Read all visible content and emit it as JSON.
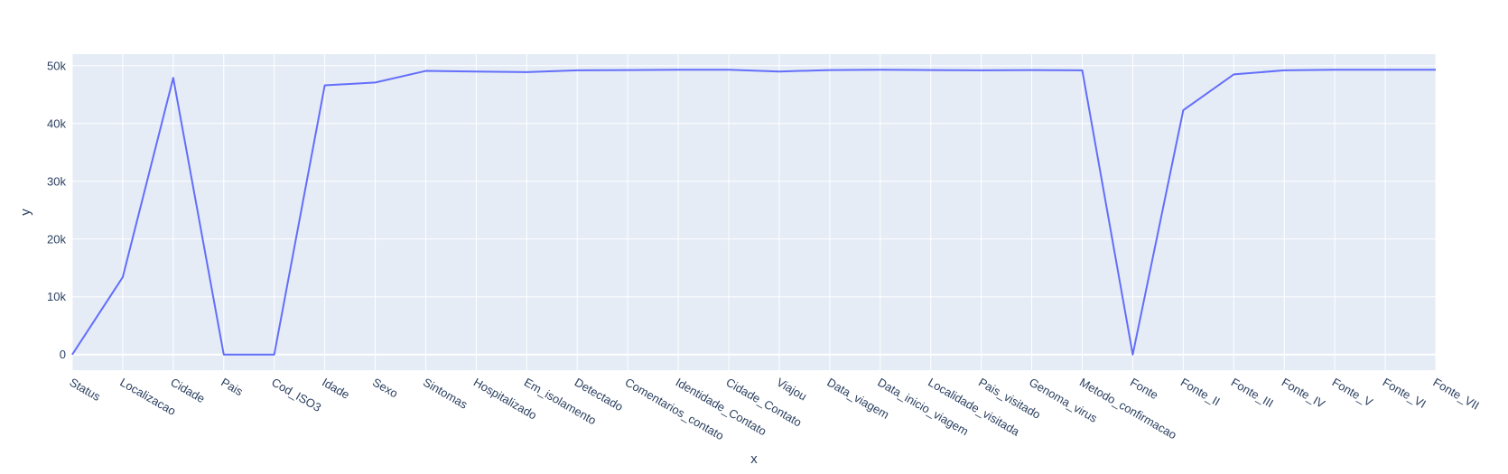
{
  "chart_data": {
    "type": "line",
    "title": "",
    "xlabel": "x",
    "ylabel": "y",
    "ylim": [
      -2700,
      52000
    ],
    "yticks": [
      0,
      10000,
      20000,
      30000,
      40000,
      50000
    ],
    "ytick_labels": [
      "0",
      "10k",
      "20k",
      "30k",
      "40k",
      "50k"
    ],
    "grid": true,
    "legend": "none",
    "categories": [
      "Status",
      "Localizacao",
      "Cidade",
      "Pais",
      "Cod_ISO3",
      "Idade",
      "Sexo",
      "Sintomas",
      "Hospitalizado",
      "Em_isolamento",
      "Detectado",
      "Comentarios_contato",
      "Identidade_Contato",
      "Cidade_Contato",
      "Viajou",
      "Data_viagem",
      "Data_inicio_viagem",
      "Localidade_visitada",
      "Pais_visitado",
      "Genoma_virus",
      "Metodo_confirmacao",
      "Fonte",
      "Fonte_II",
      "Fonte_III",
      "Fonte_IV",
      "Fonte_V",
      "Fonte_VI",
      "Fonte_VII"
    ],
    "series": [
      {
        "values": [
          0,
          13400,
          47900,
          0,
          0,
          46600,
          47100,
          49100,
          49000,
          48900,
          49200,
          49250,
          49300,
          49300,
          49000,
          49250,
          49300,
          49250,
          49200,
          49250,
          49200,
          0,
          42300,
          48500,
          49200,
          49300,
          49300,
          49300
        ]
      }
    ],
    "colors": {
      "line": "#636efa",
      "plot_bg": "#e5ecf6",
      "grid": "#ffffff",
      "text": "#2a3f5f"
    }
  }
}
